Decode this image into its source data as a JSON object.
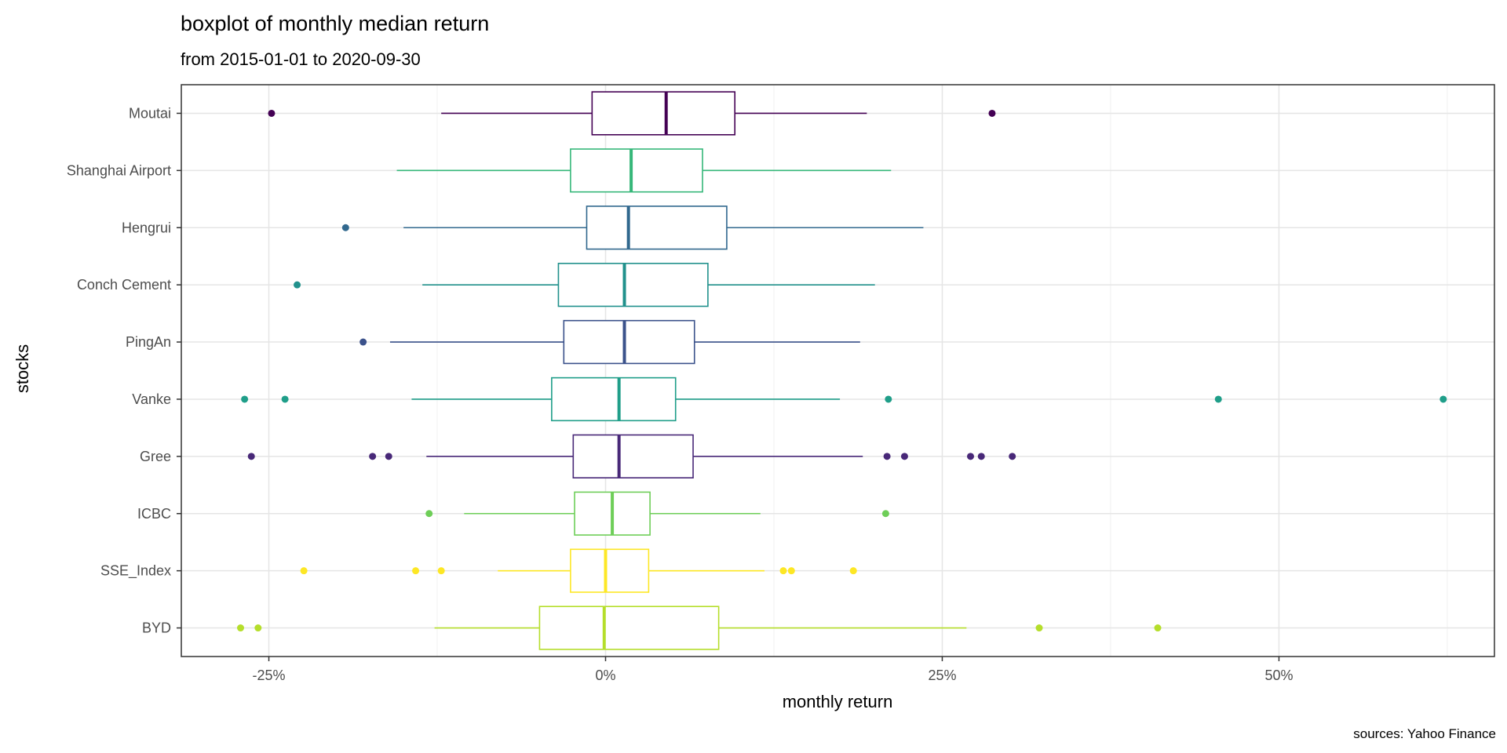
{
  "chart_data": {
    "type": "boxplot",
    "title": "boxplot of monthly median return",
    "subtitle": "from 2015-01-01 to 2020-09-30",
    "xlabel": "monthly return",
    "ylabel": "stocks",
    "caption": "sources: Yahoo Finance",
    "x_unit": "percent",
    "xlim": [
      -31.5,
      66
    ],
    "x_ticks": [
      -25,
      0,
      25,
      50
    ],
    "x_tick_labels": [
      "-25%",
      "0%",
      "25%",
      "50%"
    ],
    "grid": true,
    "legend": "none",
    "categories": [
      "Moutai",
      "Shanghai Airport",
      "Hengrui",
      "Conch Cement",
      "PingAn",
      "Vanke",
      "Gree",
      "ICBC",
      "SSE_Index",
      "BYD"
    ],
    "series": [
      {
        "category": "Moutai",
        "color": "#440154",
        "whisker_low": -12.2,
        "q1": -1.0,
        "median": 4.5,
        "q3": 9.6,
        "whisker_high": 19.4,
        "outliers": [
          -24.8,
          28.7
        ]
      },
      {
        "category": "Shanghai Airport",
        "color": "#35b779",
        "whisker_low": -15.5,
        "q1": -2.6,
        "median": 1.9,
        "q3": 7.2,
        "whisker_high": 21.2,
        "outliers": []
      },
      {
        "category": "Hengrui",
        "color": "#31688e",
        "whisker_low": -15.0,
        "q1": -1.4,
        "median": 1.7,
        "q3": 9.0,
        "whisker_high": 23.6,
        "outliers": [
          -19.3
        ]
      },
      {
        "category": "Conch Cement",
        "color": "#21918c",
        "whisker_low": -13.6,
        "q1": -3.5,
        "median": 1.4,
        "q3": 7.6,
        "whisker_high": 20.0,
        "outliers": [
          -22.9
        ]
      },
      {
        "category": "PingAn",
        "color": "#3b528b",
        "whisker_low": -16.0,
        "q1": -3.1,
        "median": 1.4,
        "q3": 6.6,
        "whisker_high": 18.9,
        "outliers": [
          -18.0
        ]
      },
      {
        "category": "Vanke",
        "color": "#1f9e89",
        "whisker_low": -14.4,
        "q1": -4.0,
        "median": 1.0,
        "q3": 5.2,
        "whisker_high": 17.4,
        "outliers": [
          -26.8,
          -23.8,
          21.0,
          45.5,
          62.2
        ]
      },
      {
        "category": "Gree",
        "color": "#482878",
        "whisker_low": -13.3,
        "q1": -2.4,
        "median": 1.0,
        "q3": 6.5,
        "whisker_high": 19.1,
        "outliers": [
          -26.3,
          -17.3,
          -16.1,
          20.9,
          22.2,
          27.1,
          27.9,
          30.2
        ]
      },
      {
        "category": "ICBC",
        "color": "#6ece58",
        "whisker_low": -10.5,
        "q1": -2.3,
        "median": 0.5,
        "q3": 3.3,
        "whisker_high": 11.5,
        "outliers": [
          -13.1,
          20.8
        ]
      },
      {
        "category": "SSE_Index",
        "color": "#fde725",
        "whisker_low": -8.0,
        "q1": -2.6,
        "median": 0.0,
        "q3": 3.2,
        "whisker_high": 11.8,
        "outliers": [
          -22.4,
          -14.1,
          -12.2,
          13.2,
          13.8,
          18.4
        ]
      },
      {
        "category": "BYD",
        "color": "#b5de2b",
        "whisker_low": -12.7,
        "q1": -4.9,
        "median": -0.1,
        "q3": 8.4,
        "whisker_high": 26.8,
        "outliers": [
          -27.1,
          -25.8,
          32.2,
          41.0
        ]
      }
    ]
  }
}
